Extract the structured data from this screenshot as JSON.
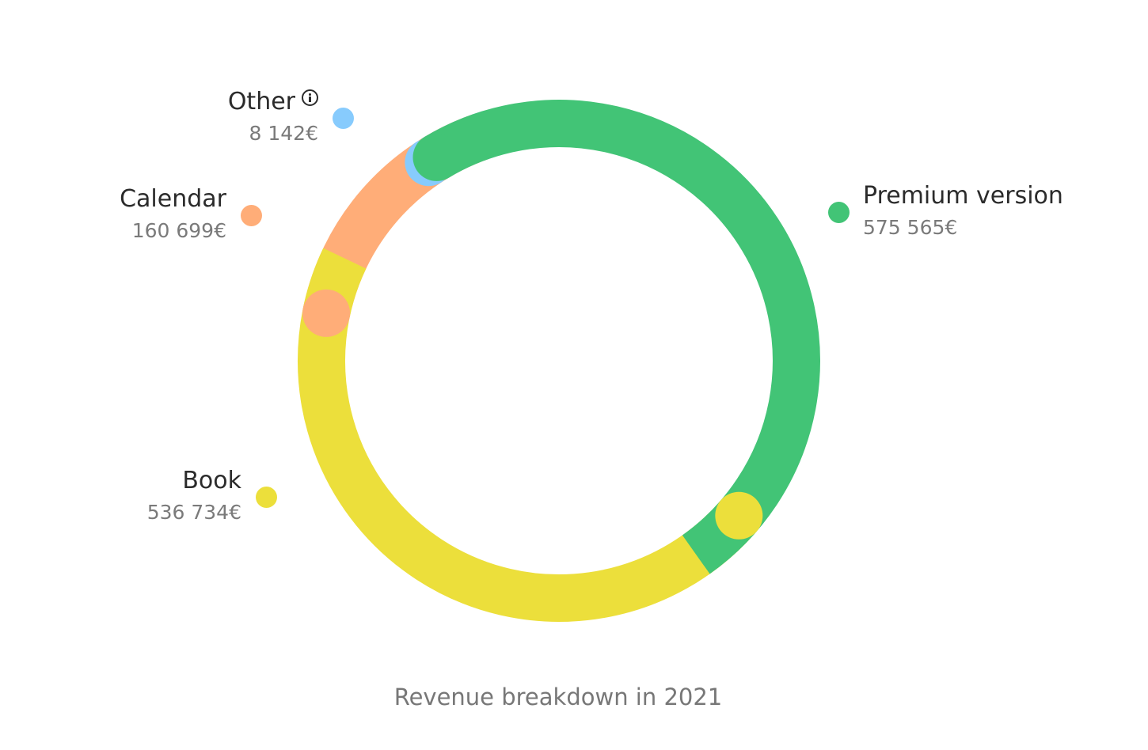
{
  "chart_data": {
    "type": "pie",
    "subtype": "donut",
    "title": "Revenue breakdown in 2021",
    "currency": "€",
    "slices": [
      {
        "name": "Premium version",
        "value": 575565,
        "display": "575 565€",
        "color": "#42c476"
      },
      {
        "name": "Book",
        "value": 536734,
        "display": "536 734€",
        "color": "#ecdf3b"
      },
      {
        "name": "Calendar",
        "value": 160699,
        "display": "160 699€",
        "color": "#ffad78"
      },
      {
        "name": "Other",
        "value": 8142,
        "display": "8 142€",
        "color": "#87cbfd",
        "info_icon": "info-icon"
      }
    ],
    "legend": "labels-around-ring"
  }
}
